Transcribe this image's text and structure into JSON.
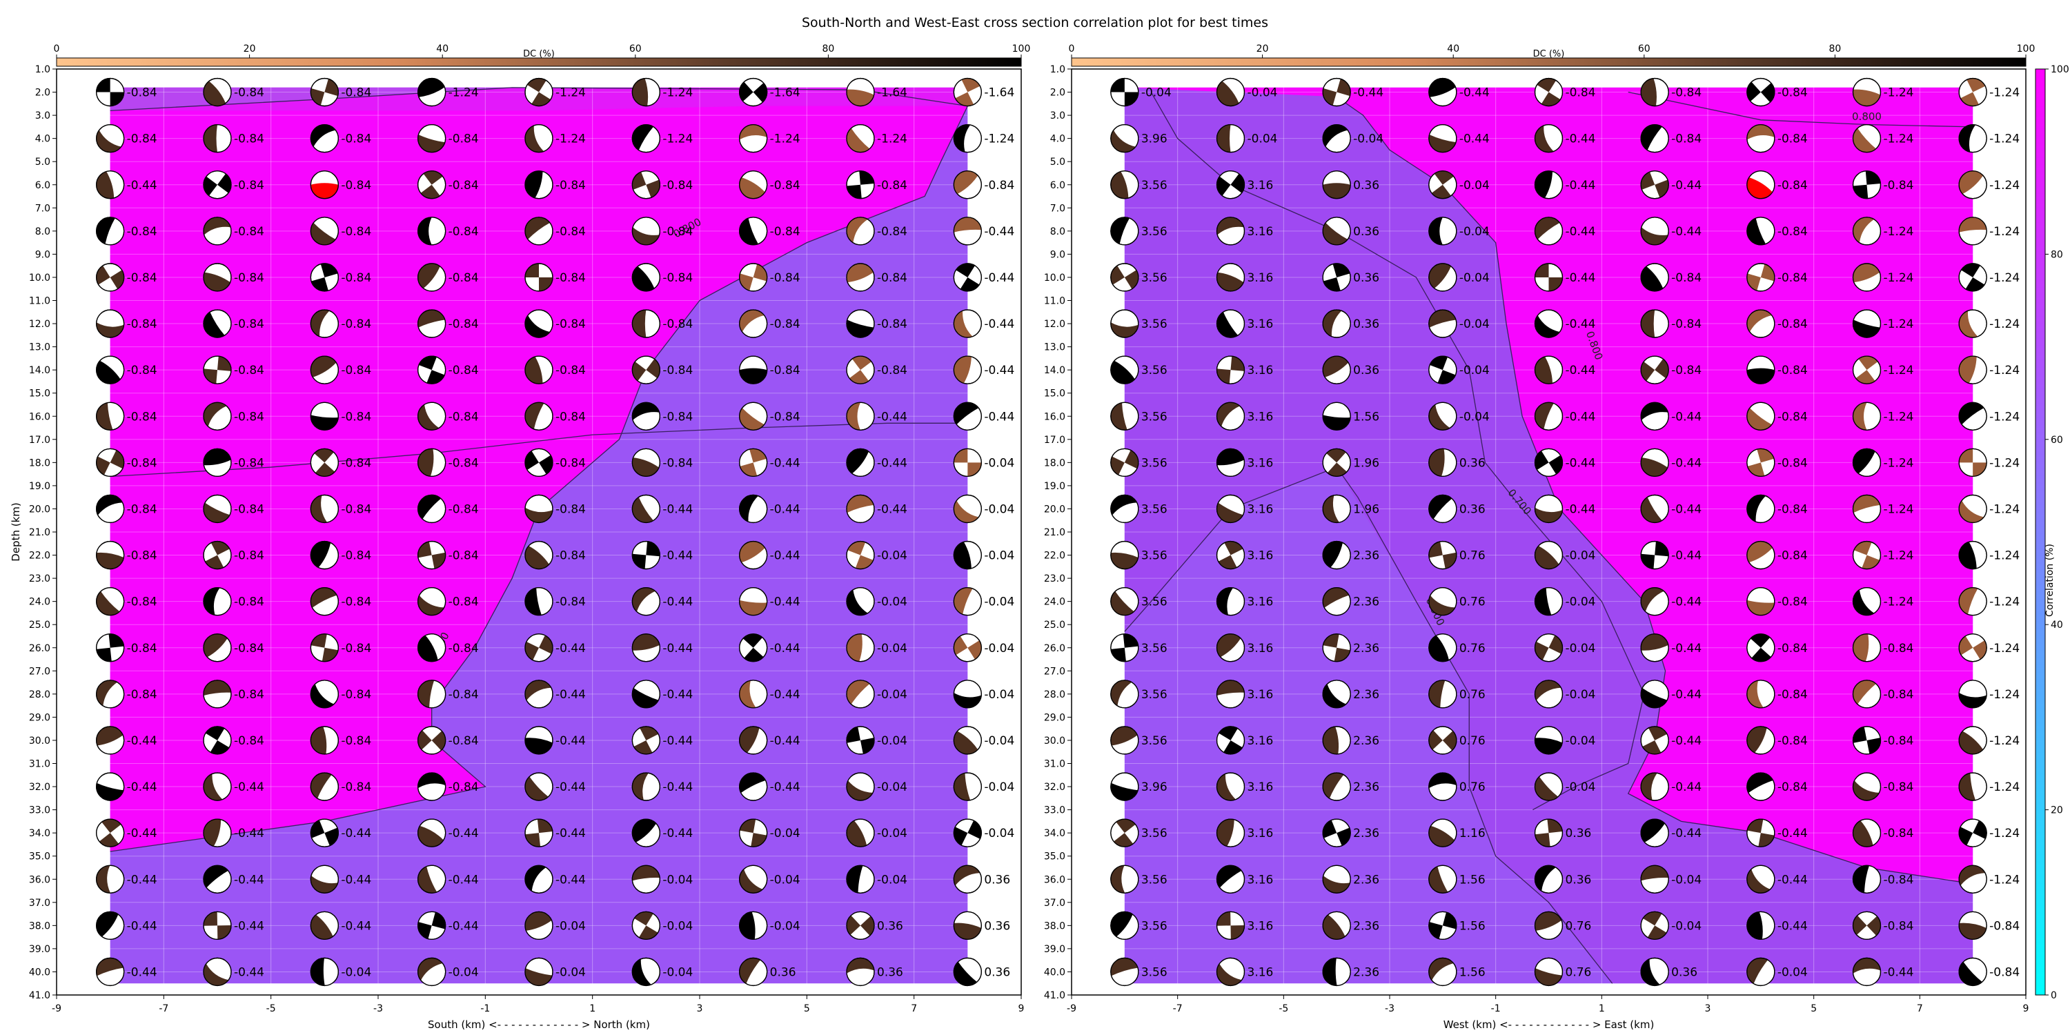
{
  "figure": {
    "title": "South-North and West-East cross section correlation plot for best times"
  },
  "colors": {
    "corr_low": "#00ffff",
    "corr_high": "#ff00ff",
    "dc_low": "#ffc48c",
    "dc_high": "#000000",
    "beachball_dark": "#4a2e1e",
    "best_solution": "#ff0000",
    "contour": "#3a2060"
  },
  "chart_data": [
    {
      "id": "south-north",
      "type": "heatmap",
      "xlabel": "South (km) <- - - - - - - - - - - - > North (km)",
      "ylabel": "Depth (km)",
      "xlim": [
        -9,
        9
      ],
      "ylim": [
        41,
        1
      ],
      "xticks": [
        "-9",
        "-7",
        "-5",
        "-3",
        "-1",
        "1",
        "3",
        "5",
        "7",
        "9"
      ],
      "yticks": [
        "1.0",
        "2.0",
        "3.0",
        "4.0",
        "5.0",
        "6.0",
        "7.0",
        "8.0",
        "9.0",
        "10.0",
        "11.0",
        "12.0",
        "13.0",
        "14.0",
        "15.0",
        "16.0",
        "17.0",
        "18.0",
        "19.0",
        "20.0",
        "21.0",
        "22.0",
        "23.0",
        "24.0",
        "25.0",
        "26.0",
        "27.0",
        "28.0",
        "29.0",
        "30.0",
        "31.0",
        "32.0",
        "33.0",
        "34.0",
        "35.0",
        "36.0",
        "37.0",
        "38.0",
        "39.0",
        "40.0",
        "41.0"
      ],
      "grid": true,
      "x": [
        -8,
        -6,
        -4,
        -2,
        0,
        2,
        4,
        6,
        8
      ],
      "depths": [
        2,
        4,
        6,
        8,
        10,
        12,
        14,
        16,
        18,
        20,
        22,
        24,
        26,
        28,
        30,
        32,
        34,
        36,
        38,
        40
      ],
      "time_labels": [
        [
          "-0.84",
          "-0.84",
          "-0.84",
          "-1.24",
          "-1.24",
          "-1.24",
          "-1.64",
          "-1.64",
          "-1.64"
        ],
        [
          "-0.84",
          "-0.84",
          "-0.84",
          "-0.84",
          "-1.24",
          "-1.24",
          "-1.24",
          "-1.24",
          "-1.24"
        ],
        [
          "-0.44",
          "-0.84",
          "-0.84",
          "-0.84",
          "-0.84",
          "-0.84",
          "-0.84",
          "-0.84",
          "-0.84"
        ],
        [
          "-0.84",
          "-0.84",
          "-0.84",
          "-0.84",
          "-0.84",
          "-0.84",
          "-0.84",
          "-0.84",
          "-0.44"
        ],
        [
          "-0.84",
          "-0.84",
          "-0.84",
          "-0.84",
          "-0.84",
          "-0.84",
          "-0.84",
          "-0.84",
          "-0.44"
        ],
        [
          "-0.84",
          "-0.84",
          "-0.84",
          "-0.84",
          "-0.84",
          "-0.84",
          "-0.84",
          "-0.84",
          "-0.44"
        ],
        [
          "-0.84",
          "-0.84",
          "-0.84",
          "-0.84",
          "-0.84",
          "-0.84",
          "-0.84",
          "-0.84",
          "-0.44"
        ],
        [
          "-0.84",
          "-0.84",
          "-0.84",
          "-0.84",
          "-0.84",
          "-0.84",
          "-0.84",
          "-0.44",
          "-0.44"
        ],
        [
          "-0.84",
          "-0.84",
          "-0.84",
          "-0.84",
          "-0.84",
          "-0.84",
          "-0.44",
          "-0.44",
          "-0.04"
        ],
        [
          "-0.84",
          "-0.84",
          "-0.84",
          "-0.84",
          "-0.84",
          "-0.44",
          "-0.44",
          "-0.44",
          "-0.04"
        ],
        [
          "-0.84",
          "-0.84",
          "-0.84",
          "-0.84",
          "-0.84",
          "-0.44",
          "-0.44",
          "-0.04",
          "-0.04"
        ],
        [
          "-0.84",
          "-0.84",
          "-0.84",
          "-0.84",
          "-0.84",
          "-0.44",
          "-0.44",
          "-0.04",
          "-0.04"
        ],
        [
          "-0.84",
          "-0.84",
          "-0.84",
          "-0.84",
          "-0.44",
          "-0.44",
          "-0.44",
          "-0.04",
          "-0.04"
        ],
        [
          "-0.84",
          "-0.84",
          "-0.84",
          "-0.84",
          "-0.44",
          "-0.44",
          "-0.44",
          "-0.04",
          "-0.04"
        ],
        [
          "-0.44",
          "-0.84",
          "-0.84",
          "-0.84",
          "-0.44",
          "-0.44",
          "-0.44",
          "-0.04",
          "-0.04"
        ],
        [
          "-0.44",
          "-0.44",
          "-0.84",
          "-0.84",
          "-0.44",
          "-0.44",
          "-0.44",
          "-0.04",
          "-0.04"
        ],
        [
          "-0.44",
          "-0.44",
          "-0.44",
          "-0.44",
          "-0.44",
          "-0.44",
          "-0.04",
          "-0.04",
          "-0.04"
        ],
        [
          "-0.44",
          "-0.44",
          "-0.44",
          "-0.44",
          "-0.44",
          "-0.04",
          "-0.04",
          "-0.04",
          "0.36"
        ],
        [
          "-0.44",
          "-0.44",
          "-0.44",
          "-0.44",
          "-0.04",
          "-0.04",
          "-0.04",
          "0.36",
          "0.36"
        ],
        [
          "-0.44",
          "-0.44",
          "-0.04",
          "-0.04",
          "-0.04",
          "-0.04",
          "0.36",
          "0.36",
          "0.36"
        ]
      ],
      "best": {
        "x": -4,
        "depth": 6
      },
      "contour_labels": [
        "0.800",
        "0.800"
      ],
      "colorbar": {
        "label": "DC (%)",
        "range": [
          0,
          100
        ],
        "ticks": [
          "0",
          "20",
          "40",
          "60",
          "80",
          "100"
        ]
      }
    },
    {
      "id": "west-east",
      "type": "heatmap",
      "xlabel": "West (km) <- - - - - - - - - - - - > East (km)",
      "ylabel": "",
      "xlim": [
        -9,
        9
      ],
      "ylim": [
        41,
        1
      ],
      "xticks": [
        "-9",
        "-7",
        "-5",
        "-3",
        "-1",
        "1",
        "3",
        "5",
        "7",
        "9"
      ],
      "yticks": [
        "1.0",
        "2.0",
        "3.0",
        "4.0",
        "5.0",
        "6.0",
        "7.0",
        "8.0",
        "9.0",
        "10.0",
        "11.0",
        "12.0",
        "13.0",
        "14.0",
        "15.0",
        "16.0",
        "17.0",
        "18.0",
        "19.0",
        "20.0",
        "21.0",
        "22.0",
        "23.0",
        "24.0",
        "25.0",
        "26.0",
        "27.0",
        "28.0",
        "29.0",
        "30.0",
        "31.0",
        "32.0",
        "33.0",
        "34.0",
        "35.0",
        "36.0",
        "37.0",
        "38.0",
        "39.0",
        "40.0",
        "41.0"
      ],
      "grid": true,
      "x": [
        -8,
        -6,
        -4,
        -2,
        0,
        2,
        4,
        6,
        8
      ],
      "depths": [
        2,
        4,
        6,
        8,
        10,
        12,
        14,
        16,
        18,
        20,
        22,
        24,
        26,
        28,
        30,
        32,
        34,
        36,
        38,
        40
      ],
      "time_labels": [
        [
          "-0.04",
          "-0.04",
          "-0.44",
          "-0.44",
          "-0.84",
          "-0.84",
          "-0.84",
          "-1.24",
          "-1.24"
        ],
        [
          "3.96",
          "-0.04",
          "-0.04",
          "-0.44",
          "-0.44",
          "-0.84",
          "-0.84",
          "-1.24",
          "-1.24"
        ],
        [
          "3.56",
          "3.16",
          "0.36",
          "-0.04",
          "-0.44",
          "-0.44",
          "-0.84",
          "-0.84",
          "-1.24"
        ],
        [
          "3.56",
          "3.16",
          "0.36",
          "-0.04",
          "-0.44",
          "-0.44",
          "-0.84",
          "-1.24",
          "-1.24"
        ],
        [
          "3.56",
          "3.16",
          "0.36",
          "-0.04",
          "-0.44",
          "-0.84",
          "-0.84",
          "-1.24",
          "-1.24"
        ],
        [
          "3.56",
          "3.16",
          "0.36",
          "-0.04",
          "-0.44",
          "-0.84",
          "-0.84",
          "-1.24",
          "-1.24"
        ],
        [
          "3.56",
          "3.16",
          "0.36",
          "-0.04",
          "-0.44",
          "-0.84",
          "-0.84",
          "-1.24",
          "-1.24"
        ],
        [
          "3.56",
          "3.16",
          "1.56",
          "-0.04",
          "-0.44",
          "-0.44",
          "-0.84",
          "-1.24",
          "-1.24"
        ],
        [
          "3.56",
          "3.16",
          "1.96",
          "0.36",
          "-0.44",
          "-0.44",
          "-0.84",
          "-1.24",
          "-1.24"
        ],
        [
          "3.56",
          "3.16",
          "1.96",
          "0.36",
          "-0.44",
          "-0.44",
          "-0.84",
          "-1.24",
          "-1.24"
        ],
        [
          "3.56",
          "3.16",
          "2.36",
          "0.76",
          "-0.04",
          "-0.44",
          "-0.84",
          "-1.24",
          "-1.24"
        ],
        [
          "3.56",
          "3.16",
          "2.36",
          "0.76",
          "-0.04",
          "-0.44",
          "-0.84",
          "-1.24",
          "-1.24"
        ],
        [
          "3.56",
          "3.16",
          "2.36",
          "0.76",
          "-0.04",
          "-0.44",
          "-0.84",
          "-0.84",
          "-1.24"
        ],
        [
          "3.56",
          "3.16",
          "2.36",
          "0.76",
          "-0.04",
          "-0.44",
          "-0.84",
          "-0.84",
          "-1.24"
        ],
        [
          "3.56",
          "3.16",
          "2.36",
          "0.76",
          "-0.04",
          "-0.44",
          "-0.84",
          "-0.84",
          "-1.24"
        ],
        [
          "3.96",
          "3.16",
          "2.36",
          "0.76",
          "-0.04",
          "-0.44",
          "-0.84",
          "-0.84",
          "-1.24"
        ],
        [
          "3.56",
          "3.16",
          "2.36",
          "1.16",
          "0.36",
          "-0.44",
          "-0.44",
          "-0.84",
          "-1.24"
        ],
        [
          "3.56",
          "3.16",
          "2.36",
          "1.56",
          "0.36",
          "-0.04",
          "-0.44",
          "-0.84",
          "-1.24"
        ],
        [
          "3.56",
          "3.16",
          "2.36",
          "1.56",
          "0.76",
          "-0.04",
          "-0.44",
          "-0.84",
          "-0.84"
        ],
        [
          "3.56",
          "3.16",
          "2.36",
          "1.56",
          "0.76",
          "0.36",
          "-0.04",
          "-0.44",
          "-0.84"
        ]
      ],
      "best": {
        "x": 4,
        "depth": 6
      },
      "contour_labels": [
        "0.800",
        "0.800",
        "0.700",
        "0.600"
      ],
      "colorbar": {
        "label": "DC (%)",
        "range": [
          0,
          100
        ],
        "ticks": [
          "0",
          "20",
          "40",
          "60",
          "80",
          "100"
        ]
      }
    }
  ],
  "correlation_colorbar": {
    "label": "Correlation (%)",
    "range": [
      0,
      100
    ],
    "ticks": [
      "0",
      "20",
      "40",
      "60",
      "80",
      "100"
    ]
  }
}
